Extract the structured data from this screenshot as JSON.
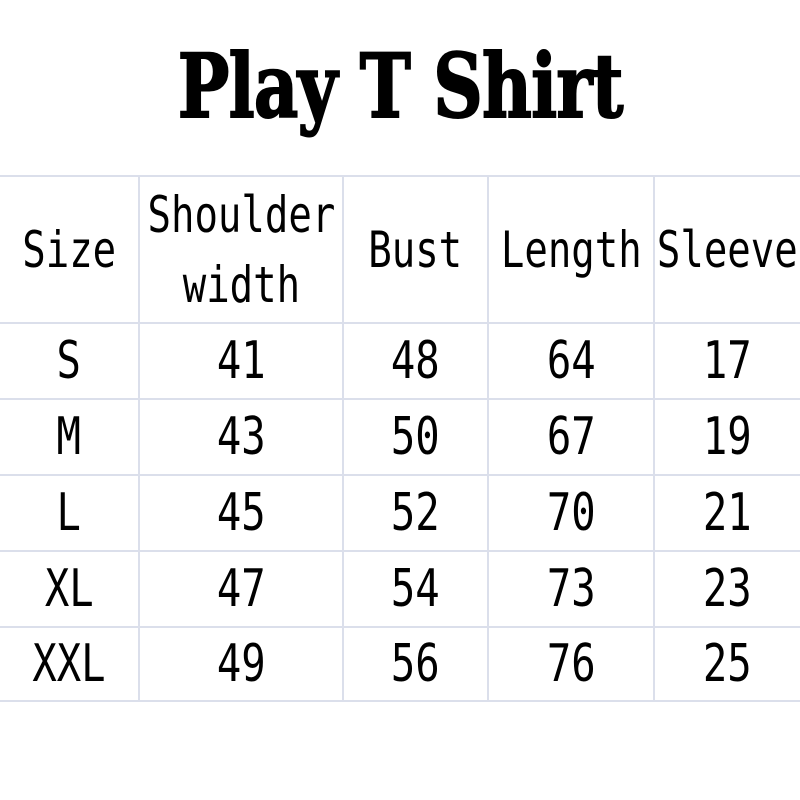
{
  "title": "Play T Shirt",
  "chart_data": {
    "type": "table",
    "title": "Play T Shirt",
    "columns": [
      "Size",
      "Shoulder width",
      "Bust",
      "Length",
      "Sleeve"
    ],
    "rows": [
      [
        "S",
        "41",
        "48",
        "64",
        "17"
      ],
      [
        "M",
        "43",
        "50",
        "67",
        "19"
      ],
      [
        "L",
        "45",
        "52",
        "70",
        "21"
      ],
      [
        "XL",
        "47",
        "54",
        "73",
        "23"
      ],
      [
        "XXL",
        "49",
        "56",
        "76",
        "25"
      ]
    ]
  },
  "colors": {
    "background": "#ffffff",
    "text": "#000000",
    "grid_line": "#dbdfeb"
  }
}
